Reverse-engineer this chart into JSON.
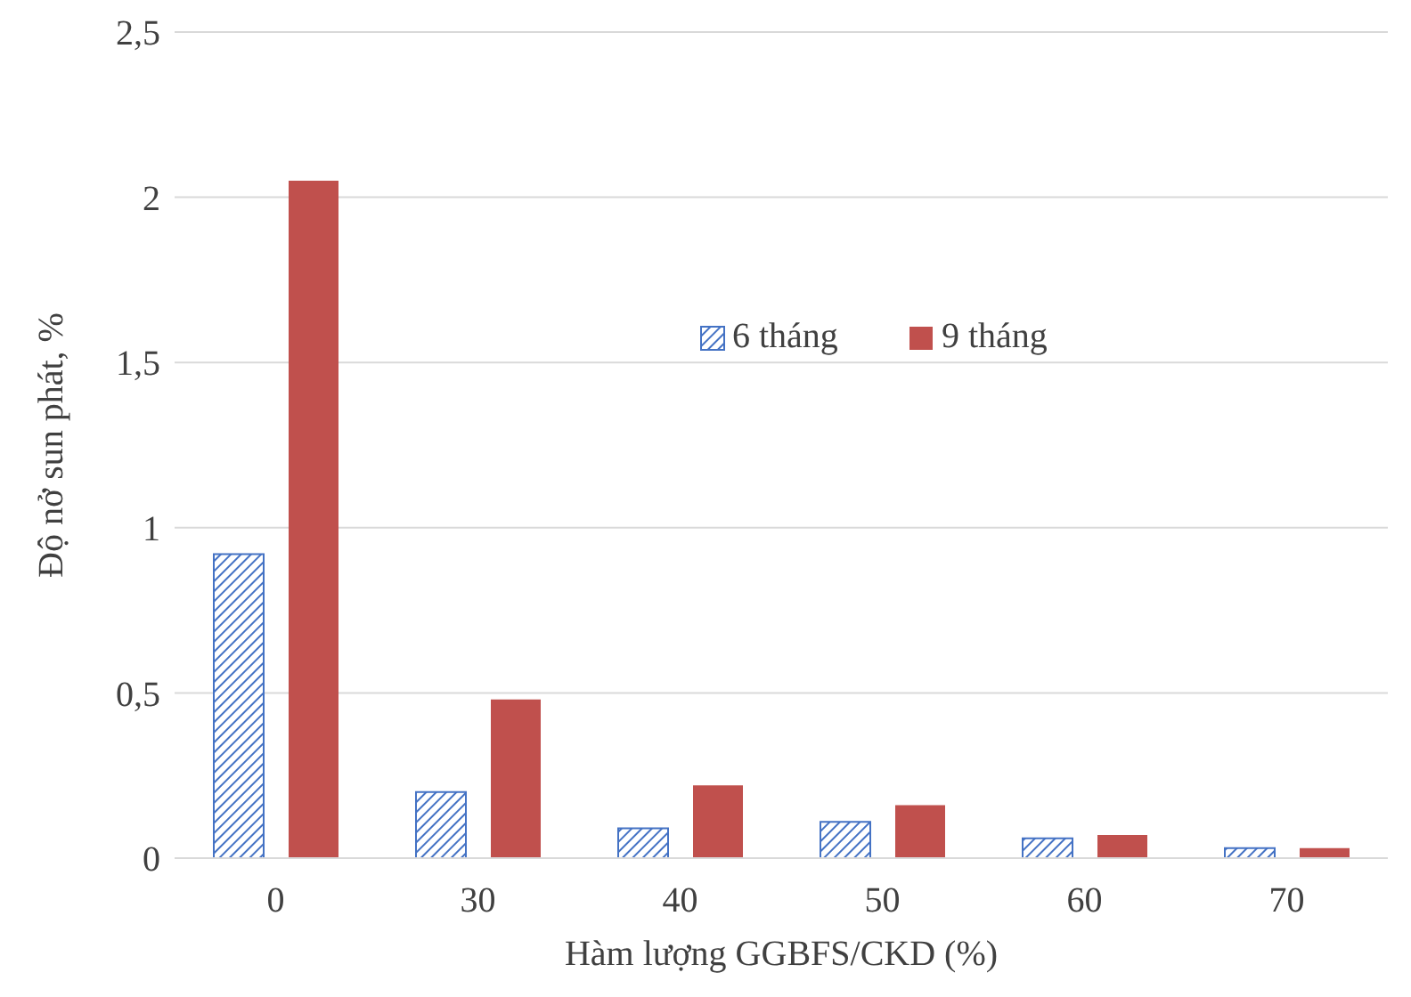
{
  "chart_data": {
    "type": "bar",
    "xlabel": "Hàm lượng GGBFS/CKD (%)",
    "ylabel": "Độ nở sun phát, %",
    "categories": [
      "0",
      "30",
      "40",
      "50",
      "60",
      "70"
    ],
    "series": [
      {
        "name": "6 tháng",
        "color": "#4472c4",
        "values": [
          0.92,
          0.2,
          0.09,
          0.11,
          0.06,
          0.03
        ]
      },
      {
        "name": "9 tháng",
        "color": "#c0504d",
        "values": [
          2.05,
          0.48,
          0.22,
          0.16,
          0.07,
          0.03
        ]
      }
    ],
    "ylim": [
      0,
      2.5
    ],
    "yticks": [
      0,
      {
        "value": 0.5,
        "label": "0,5"
      },
      1,
      {
        "value": 1.5,
        "label": "1,5"
      },
      2,
      {
        "value": 2.5,
        "label": "2,5"
      }
    ],
    "grid": "y",
    "legend": "top"
  }
}
